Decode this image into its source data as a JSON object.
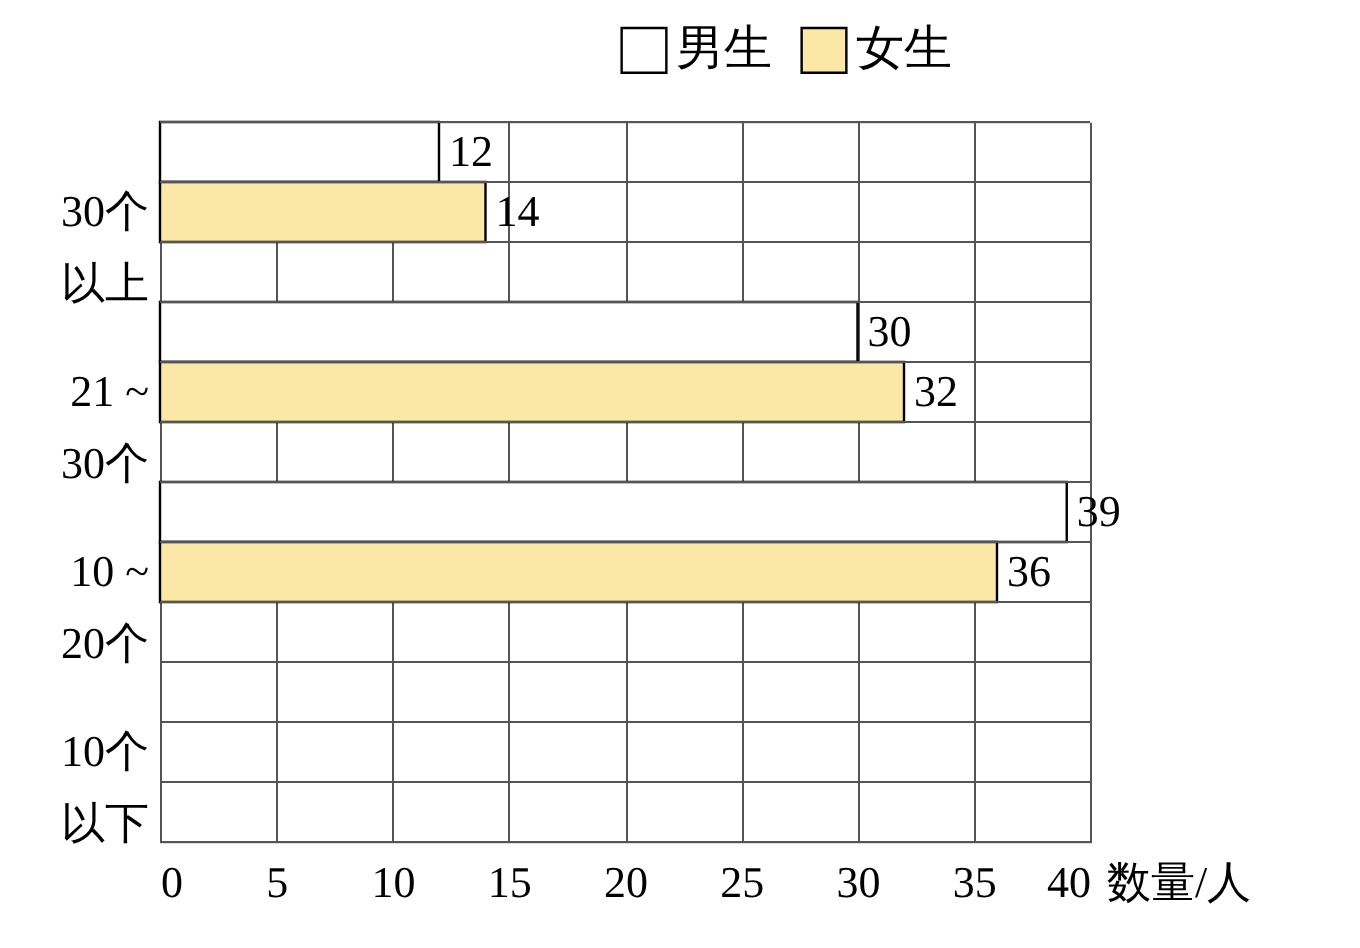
{
  "chart_data": {
    "type": "bar",
    "orientation": "horizontal",
    "categories": [
      "30个以上",
      "21 ~ 30个",
      "10 ~ 20个",
      "10个以下"
    ],
    "series": [
      {
        "name": "男生",
        "color": "#ffffff",
        "values": [
          12,
          30,
          39,
          null
        ]
      },
      {
        "name": "女生",
        "color": "#fbe8a6",
        "values": [
          14,
          32,
          36,
          null
        ]
      }
    ],
    "xlabel": "数量/人",
    "xlim": [
      0,
      40
    ],
    "xticks": [
      0,
      5,
      10,
      15,
      20,
      25,
      30,
      35,
      40
    ],
    "grid": true,
    "legend": "top right",
    "data_labels": true
  }
}
